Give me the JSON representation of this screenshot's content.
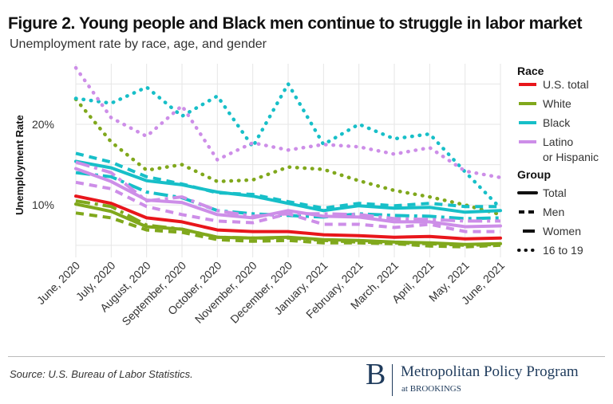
{
  "header": {
    "title": "Figure 2. Young people and Black men continue to struggle in labor market",
    "subtitle": "Unemployment rate by race, age, and gender"
  },
  "footer": {
    "source": "Source: U.S. Bureau of Labor Statistics.",
    "logo_letter": "B",
    "logo_name": "Metropolitan Policy Program",
    "logo_sub": "at BROOKINGS"
  },
  "colors": {
    "us_total": "#e8161b",
    "white": "#80a81c",
    "black": "#17bfc8",
    "latino": "#cd8ee8",
    "grid": "#e6e6e6"
  },
  "chart_data": {
    "type": "line",
    "title": "Figure 2. Young people and Black men continue to struggle in labor market",
    "subtitle": "Unemployment rate by race, age, and gender",
    "xlabel": "",
    "ylabel": "Unemployment Rate",
    "ylim": [
      3.5,
      27.5
    ],
    "yticks": [
      10,
      20
    ],
    "ytick_labels": [
      "10%",
      "20%"
    ],
    "grid": true,
    "categories": [
      "June, 2020",
      "July, 2020",
      "August, 2020",
      "September, 2020",
      "October, 2020",
      "November, 2020",
      "December, 2020",
      "January, 2021",
      "February, 2021",
      "March, 2021",
      "April, 2021",
      "May, 2021",
      "June, 2021"
    ],
    "legend": {
      "position": "right",
      "race_title": "Race",
      "race": [
        {
          "key": "us_total",
          "label": "U.S. total"
        },
        {
          "key": "white",
          "label": "White"
        },
        {
          "key": "black",
          "label": "Black"
        },
        {
          "key": "latino",
          "label": "Latino\nor Hispanic"
        }
      ],
      "group_title": "Group",
      "group": [
        {
          "key": "total",
          "label": "Total"
        },
        {
          "key": "men",
          "label": "Men"
        },
        {
          "key": "women",
          "label": "Women"
        },
        {
          "key": "teens",
          "label": "16 to 19"
        }
      ]
    },
    "series": [
      {
        "name": "U.S. total - Total",
        "race": "us_total",
        "group": "total",
        "values": [
          11.1,
          10.2,
          8.4,
          7.9,
          6.9,
          6.7,
          6.7,
          6.3,
          6.2,
          6.0,
          6.1,
          5.8,
          5.9
        ]
      },
      {
        "name": "White - Total",
        "race": "white",
        "group": "total",
        "values": [
          10.1,
          9.2,
          7.3,
          7.0,
          6.0,
          5.9,
          6.0,
          5.7,
          5.6,
          5.4,
          5.3,
          5.1,
          5.2
        ]
      },
      {
        "name": "White - Men",
        "race": "white",
        "group": "men",
        "values": [
          9.0,
          8.4,
          6.9,
          6.6,
          5.7,
          5.5,
          5.6,
          5.3,
          5.3,
          5.2,
          4.9,
          4.8,
          5.0
        ]
      },
      {
        "name": "White - Women",
        "race": "white",
        "group": "women",
        "values": [
          10.5,
          9.8,
          7.5,
          7.0,
          6.0,
          5.9,
          5.9,
          5.6,
          5.4,
          5.3,
          5.2,
          5.0,
          5.1
        ]
      },
      {
        "name": "White - 16 to 19",
        "race": "white",
        "group": "teens",
        "values": [
          23.1,
          17.8,
          14.3,
          15.0,
          12.9,
          13.1,
          14.7,
          14.4,
          13.0,
          11.8,
          11.0,
          10.0,
          8.8
        ]
      },
      {
        "name": "Black - Total",
        "race": "black",
        "group": "total",
        "values": [
          15.4,
          14.6,
          13.0,
          12.5,
          11.6,
          11.1,
          10.2,
          9.3,
          9.9,
          9.6,
          9.7,
          9.1,
          9.3
        ]
      },
      {
        "name": "Black - Men",
        "race": "black",
        "group": "men",
        "values": [
          16.4,
          15.3,
          13.5,
          12.6,
          11.5,
          11.3,
          10.4,
          9.6,
          10.2,
          9.9,
          10.2,
          9.8,
          9.8
        ]
      },
      {
        "name": "Black - Women",
        "race": "black",
        "group": "women",
        "values": [
          14.0,
          13.5,
          11.6,
          10.9,
          9.3,
          8.9,
          8.7,
          8.5,
          8.9,
          8.7,
          8.6,
          8.3,
          8.4
        ]
      },
      {
        "name": "Black - 16 to 19",
        "race": "black",
        "group": "teens",
        "values": [
          23.2,
          22.6,
          24.6,
          21.0,
          23.5,
          17.2,
          25.0,
          17.5,
          20.0,
          18.2,
          18.8,
          14.1,
          9.6
        ]
      },
      {
        "name": "Latino or Hispanic - Total",
        "race": "latino",
        "group": "total",
        "values": [
          14.5,
          12.9,
          10.6,
          10.3,
          8.8,
          8.4,
          9.3,
          8.6,
          8.5,
          7.9,
          7.9,
          7.3,
          7.4
        ]
      },
      {
        "name": "Latino or Hispanic - Men",
        "race": "latino",
        "group": "men",
        "values": [
          12.8,
          12.0,
          9.8,
          8.8,
          8.0,
          7.8,
          8.9,
          7.6,
          7.6,
          7.2,
          7.6,
          6.7,
          6.7
        ]
      },
      {
        "name": "Latino or Hispanic - Women",
        "race": "latino",
        "group": "women",
        "values": [
          15.3,
          14.0,
          10.5,
          11.0,
          9.3,
          8.6,
          8.9,
          8.9,
          8.8,
          8.3,
          8.2,
          8.0,
          8.0
        ]
      },
      {
        "name": "Latino or Hispanic - 16 to 19",
        "race": "latino",
        "group": "teens",
        "values": [
          27.0,
          20.8,
          18.5,
          22.3,
          15.6,
          17.7,
          16.8,
          17.5,
          17.2,
          16.3,
          17.1,
          14.2,
          13.4
        ]
      }
    ]
  }
}
